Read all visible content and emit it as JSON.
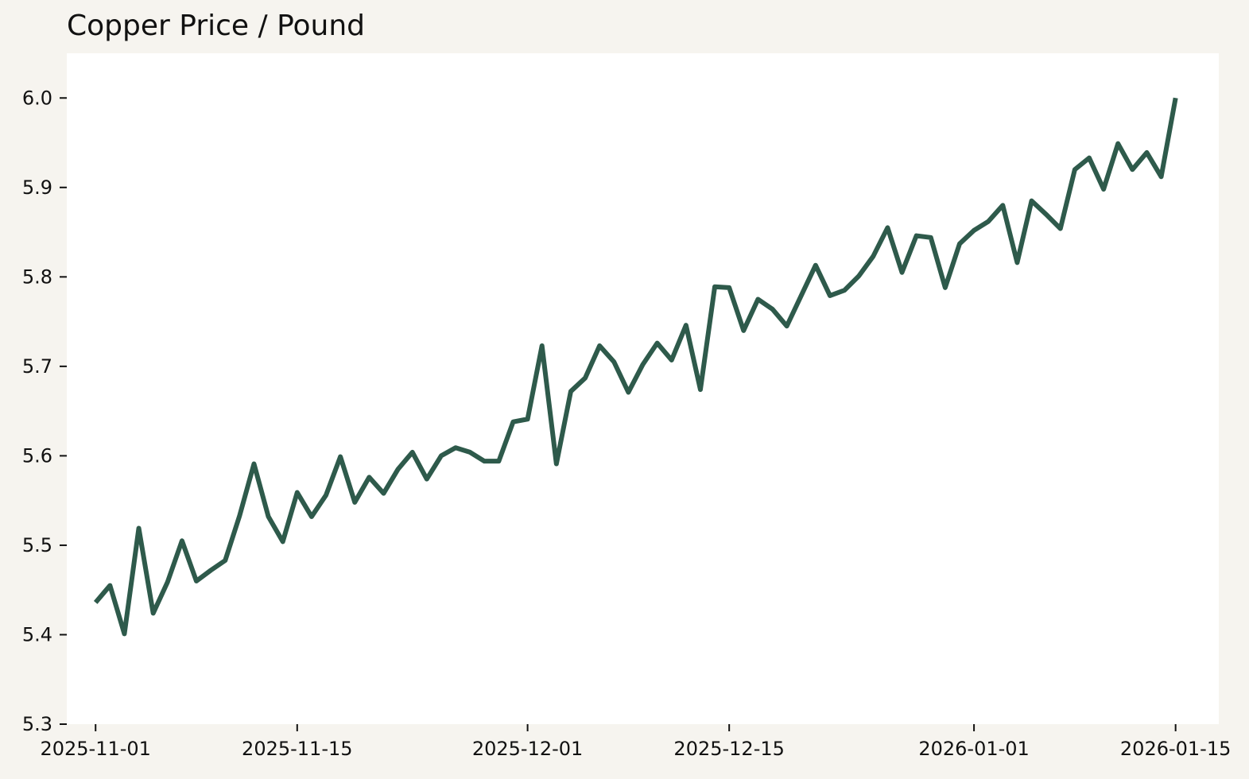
{
  "chart_data": {
    "type": "line",
    "title": "Copper Price / Pound",
    "xlabel": "",
    "ylabel": "",
    "x_axis_type": "date",
    "xlim": [
      "2025-10-30",
      "2026-01-18"
    ],
    "ylim": [
      5.3,
      6.05
    ],
    "grid": false,
    "legend": "none",
    "line_color": "#2e5a4b",
    "plot_background": "#ffffff",
    "figure_background": "#f6f4ef",
    "x_ticks": [
      "2025-11-01",
      "2025-11-15",
      "2025-12-01",
      "2025-12-15",
      "2026-01-01",
      "2026-01-15"
    ],
    "y_ticks": [
      "5.3",
      "5.4",
      "5.5",
      "5.6",
      "5.7",
      "5.8",
      "5.9",
      "6.0"
    ],
    "series": [
      {
        "x": [
          "2025-11-01",
          "2025-11-02",
          "2025-11-03",
          "2025-11-04",
          "2025-11-05",
          "2025-11-06",
          "2025-11-07",
          "2025-11-08",
          "2025-11-09",
          "2025-11-10",
          "2025-11-11",
          "2025-11-12",
          "2025-11-13",
          "2025-11-14",
          "2025-11-15",
          "2025-11-16",
          "2025-11-17",
          "2025-11-18",
          "2025-11-19",
          "2025-11-20",
          "2025-11-21",
          "2025-11-22",
          "2025-11-23",
          "2025-11-24",
          "2025-11-25",
          "2025-11-26",
          "2025-11-27",
          "2025-11-28",
          "2025-11-29",
          "2025-11-30",
          "2025-12-01",
          "2025-12-02",
          "2025-12-03",
          "2025-12-04",
          "2025-12-05",
          "2025-12-06",
          "2025-12-07",
          "2025-12-08",
          "2025-12-09",
          "2025-12-10",
          "2025-12-11",
          "2025-12-12",
          "2025-12-13",
          "2025-12-14",
          "2025-12-15",
          "2025-12-16",
          "2025-12-17",
          "2025-12-18",
          "2025-12-19",
          "2025-12-20",
          "2025-12-21",
          "2025-12-22",
          "2025-12-23",
          "2025-12-24",
          "2025-12-25",
          "2025-12-26",
          "2025-12-27",
          "2025-12-28",
          "2025-12-29",
          "2025-12-30",
          "2025-12-31",
          "2026-01-01",
          "2026-01-02",
          "2026-01-03",
          "2026-01-04",
          "2026-01-05",
          "2026-01-06",
          "2026-01-07",
          "2026-01-08",
          "2026-01-09",
          "2026-01-10",
          "2026-01-11",
          "2026-01-12",
          "2026-01-13",
          "2026-01-14",
          "2026-01-15"
        ],
        "values": [
          5.436,
          5.455,
          5.401,
          5.519,
          5.424,
          5.459,
          5.505,
          5.46,
          5.472,
          5.483,
          5.533,
          5.591,
          5.532,
          5.504,
          5.559,
          5.532,
          5.556,
          5.599,
          5.548,
          5.576,
          5.558,
          5.585,
          5.604,
          5.574,
          5.6,
          5.609,
          5.604,
          5.594,
          5.594,
          5.638,
          5.641,
          5.723,
          5.591,
          5.672,
          5.687,
          5.723,
          5.705,
          5.671,
          5.702,
          5.726,
          5.707,
          5.746,
          5.674,
          5.789,
          5.788,
          5.74,
          5.775,
          5.764,
          5.745,
          5.779,
          5.813,
          5.779,
          5.785,
          5.801,
          5.823,
          5.855,
          5.805,
          5.846,
          5.844,
          5.788,
          5.837,
          5.852,
          5.862,
          5.88,
          5.816,
          5.885,
          5.87,
          5.854,
          5.92,
          5.933,
          5.898,
          5.949,
          5.92,
          5.939,
          5.912,
          6.0
        ]
      }
    ]
  }
}
